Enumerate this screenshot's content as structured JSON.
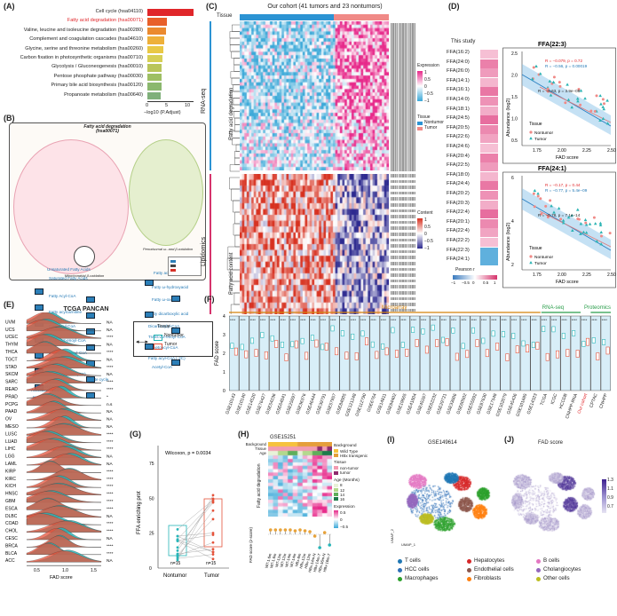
{
  "panels": {
    "A": {
      "label": "(A)",
      "xlabel": "−log10 (P.Adjust)",
      "ticks": [
        "0",
        "5",
        "10"
      ],
      "terms": [
        "Cell cycle (hsa04110)",
        "Fatty acid degradation (hsa00071)",
        "Valine, leucine and isoleucine degradation (hsa00280)",
        "Complement and coagulation cascades (hsa04610)",
        "Glycine, serine and threonine metabolism (hsa00260)",
        "Carbon fixation in photosynthetic organisms (hsa00710)",
        "Glycolysis / Gluconeogenesis (hsa00010)",
        "Pentose phosphate pathway (hsa00030)",
        "Primary bile acid biosynthesis (hsa00120)",
        "Propanoate metabolism (hsa00640)"
      ],
      "highlight_color": "#e0262a"
    },
    "B": {
      "label": "(B)",
      "title": "Fatty acid degradation (hsa00071)",
      "mito_label": "Mitochondrial β-oxidation",
      "perox_label": "Peroxisomal ω- and β-oxidation",
      "mito_nodes": [
        "Unsaturated Fatty Acids",
        "Saturated Fatty Acids",
        "Fatty Acyl-CoA",
        "Fatty acylcarnitine",
        "Fatty acyl-CoA",
        "Trans-Δ2-enoyl-CoA",
        "3-L-hydroxyacyl-CoA",
        "3-ketoacyl-CoA",
        "Fatty acyl-CoA (-2C)",
        "Acetyl-CoA",
        "Acetoacetyl-CoA",
        "Ketone bodies",
        "Citrate cycle"
      ],
      "perox_nodes": [
        "Fatty acids",
        "Fatty ω-hydroxyacid",
        "Fatty ω-oxoacid",
        "Fatty dicarboxylic acid",
        "Dicarboxylyl-CoA",
        "Trans-Δ2-enoyl-CoA",
        "3-ketoacyl-CoA",
        "Fatty acyl-CoA (-2C)",
        "Acetyl-CoA"
      ]
    },
    "C": {
      "label": "(C)",
      "title": "Our cohort (41 tumors and 23 nontumors)",
      "tissue": "Tissue",
      "rnaseq": "RNA-seq",
      "lipid": "Lipidomics",
      "fad": "Fatty acid degradation",
      "lipid_content": "Fatty acid content",
      "legend_expr": "Expression",
      "legend_expr_ticks": [
        "1",
        "0.5",
        "0",
        "−0.5",
        "−1"
      ],
      "legend_tissue": "Tissue",
      "legend_tissue_items": [
        "Nontumor",
        "Tumor"
      ],
      "legend_content": "Content",
      "legend_content_ticks": [
        "1",
        "0.5",
        "0",
        "−0.5",
        "−1"
      ]
    },
    "D": {
      "label": "(D)",
      "this_study": "This study",
      "ffa_list": [
        "FFA(16:2)",
        "FFA(24:0)",
        "FFA(26:0)",
        "FFA(14:1)",
        "FFA(16:1)",
        "FFA(14:0)",
        "FFA(18:1)",
        "FFA(24:5)",
        "FFA(20:5)",
        "FFA(22:6)",
        "FFA(24:6)",
        "FFA(20:4)",
        "FFA(22:5)",
        "FFA(18:0)",
        "FFA(24:4)",
        "FFA(20:2)",
        "FFA(20:3)",
        "FFA(22:4)",
        "FFA(20:1)",
        "FFA(22:4)",
        "FFA(22:2)",
        "FFA(22:3)",
        "FFA(24:1)"
      ],
      "pearson": "Pearson r",
      "pearson_ticks": [
        "−1",
        "−0.5",
        "0",
        "0.5",
        "1"
      ],
      "plot1": {
        "title": "FFA(22:3)",
        "r1": "R = −0.079, p = 0.72",
        "r2": "R = −0.56, p = 0.00019",
        "r3": "R = −0.63, p = 3.9e−08",
        "ylabel": "Abundance (log2)",
        "xlabel": "FAD score",
        "xticks": [
          "1.75",
          "2.00",
          "2.25",
          "2.50"
        ],
        "yticks": [
          "0.5",
          "1.0",
          "1.5",
          "2.0",
          "2.5"
        ]
      },
      "plot2": {
        "title": "FFA(24:1)",
        "r1": "R = −0.17, p = 0.44",
        "r2": "R = −0.77, p = 5.4e−09",
        "r3": "R = −0.78, p = 7.1e−14",
        "ylabel": "Abundance (log2)",
        "xlabel": "FAD score",
        "xticks": [
          "1.75",
          "2.00",
          "2.25",
          "2.50"
        ],
        "yticks": [
          "2",
          "4",
          "6"
        ]
      },
      "tissue": "Tissue",
      "nontumor": "Nontumor",
      "tumor": "Tumor"
    },
    "E": {
      "label": "(E)",
      "title": "TCGA PANCAN",
      "xlabel": "FAD score",
      "xticks": [
        "0.5",
        "1.0",
        "1.5"
      ],
      "cancers": [
        "UVM",
        "UCS",
        "UCEC",
        "THYM",
        "THCA",
        "TGCT",
        "STAD",
        "SKCM",
        "SARC",
        "READ",
        "PRAD",
        "PCPG",
        "PAAD",
        "OV",
        "MESO",
        "LUSC",
        "LUAD",
        "LIHC",
        "LGG",
        "LAML",
        "KIRP",
        "KIRC",
        "KICH",
        "HNSC",
        "GBM",
        "ESCA",
        "DLBC",
        "COAD",
        "CHOL",
        "CESC",
        "BRCA",
        "BLCA",
        "ACC"
      ],
      "sig": [
        "NA",
        "NA",
        "****",
        "NA",
        "****",
        "NA",
        "****",
        "NA",
        "****",
        "****",
        "*",
        "n.s",
        "NA",
        "NA",
        "NA",
        "****",
        "****",
        "****",
        "NA",
        "NA",
        "****",
        "****",
        "****",
        "****",
        "****",
        "****",
        "NA",
        "****",
        "****",
        "NA",
        "****",
        "****",
        "NA"
      ]
    },
    "F": {
      "label": "(F)",
      "ylabel": "FAD score",
      "microarray": "Microarray",
      "rnaseq": "RNA-seq",
      "proteomics": "Proteomics",
      "datasets": [
        "GSE10143",
        "GSE10140",
        "GSE14520",
        "GSE76427",
        "GSE54236",
        "GSE64041",
        "GSE25097",
        "GSE36376",
        "GSE46444",
        "GSE39791",
        "GSE57957",
        "GSE84005",
        "GSE121248",
        "GSE112790",
        "GSE6764",
        "GSE14811",
        "GSE84402",
        "GSE19665",
        "GSE41804",
        "GSE45267",
        "GSE62232",
        "GSE29721",
        "GSE33006",
        "GSE60502",
        "GSE55092",
        "GSE87630",
        "GSE17548",
        "GSE102079",
        "GSE45436",
        "GSE101685",
        "GSE14323",
        "TCGA",
        "ICGC",
        "HCCDB",
        "CNHPP-RNA",
        "Our cohort",
        "CPTAC",
        "CNHPP"
      ],
      "our_cohort_color": "#e0262a"
    },
    "G": {
      "label": "(G)",
      "ylabel": "FFA enriching prot",
      "stat": "Wilcoxon, p = 0.0034",
      "groups": [
        "Nontumor",
        "Tumor"
      ],
      "n": [
        "n=15",
        "n=15"
      ],
      "yticks": [
        "0",
        "25",
        "50",
        "75"
      ]
    },
    "H": {
      "label": "(H)",
      "title": "GSE15251",
      "rows": [
        "Background",
        "Tissue",
        "Age"
      ],
      "fad": "Fatty acid degradation",
      "ylabel": "FAD score (z-score)",
      "legend_bg": "Background",
      "legend_bg_items": [
        "Wild Type",
        "HBx transgenic"
      ],
      "legend_tissue": "Tissue",
      "legend_tissue_items": [
        "non-tumor",
        "tumor"
      ],
      "legend_age": "Age (Months)",
      "legend_age_items": [
        "8",
        "12",
        "14",
        "16"
      ],
      "legend_expr": "Expression",
      "legend_expr_ticks": [
        "0.5",
        "0",
        "−0.5"
      ],
      "samples": [
        "WT-1.6m",
        "WT-1.6m",
        "WT-12m",
        "WT-12m",
        "WT-14m",
        "WT-14m",
        "HBx-8m",
        "HBx-12m",
        "HBx-12m",
        "HBx-14m-N",
        "HBx-14m-T",
        "HBx-16m-N",
        "HBx-16m-T"
      ]
    },
    "I": {
      "label": "(I)",
      "title": "GSE149614",
      "umap1": "UMAP_1",
      "umap2": "UMAP_2",
      "legend": [
        [
          "T cells",
          "#1f77b4"
        ],
        [
          "Hepatocytes",
          "#d62728"
        ],
        [
          "B cells",
          "#e377c2"
        ],
        [
          "HCC cells",
          "#2e6fb7"
        ],
        [
          "Endothelial cells",
          "#8c564b"
        ],
        [
          "Cholangiocytes",
          "#9467bd"
        ],
        [
          "Macrophages",
          "#2ca02c"
        ],
        [
          "Fibroblasts",
          "#ff7f0e"
        ],
        [
          "Other cells",
          "#bcbd22"
        ]
      ]
    },
    "J": {
      "label": "(J)",
      "title": "FAD score",
      "ticks": [
        "1.3",
        "1.1",
        "0.9",
        "0.7"
      ]
    }
  }
}
